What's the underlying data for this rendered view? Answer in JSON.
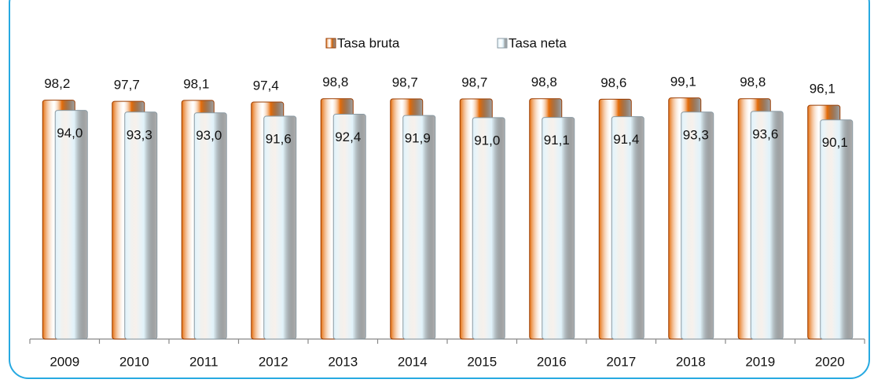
{
  "chart_data": {
    "type": "bar",
    "categories": [
      "2009",
      "2010",
      "2011",
      "2012",
      "2013",
      "2014",
      "2015",
      "2016",
      "2017",
      "2018",
      "2019",
      "2020"
    ],
    "series": [
      {
        "name": "Tasa bruta",
        "color": "#e46c0a",
        "values": [
          98.2,
          97.7,
          98.1,
          97.4,
          98.8,
          98.7,
          98.7,
          98.8,
          98.6,
          99.1,
          98.8,
          96.1
        ],
        "value_labels": [
          "98,2",
          "97,7",
          "98,1",
          "97,4",
          "98,8",
          "98,7",
          "98,7",
          "98,8",
          "98,6",
          "99,1",
          "98,8",
          "96,1"
        ]
      },
      {
        "name": "Tasa neta",
        "color": "#dff1f9",
        "values": [
          94.0,
          93.3,
          93.0,
          91.6,
          92.4,
          91.9,
          91.0,
          91.1,
          91.4,
          93.3,
          93.6,
          90.1
        ],
        "value_labels": [
          "94,0",
          "93,3",
          "93,0",
          "91,6",
          "92,4",
          "91,9",
          "91,0",
          "91,1",
          "91,4",
          "93,3",
          "93,6",
          "90,1"
        ]
      }
    ],
    "ylim": [
      0,
      100
    ],
    "legend": "top"
  }
}
